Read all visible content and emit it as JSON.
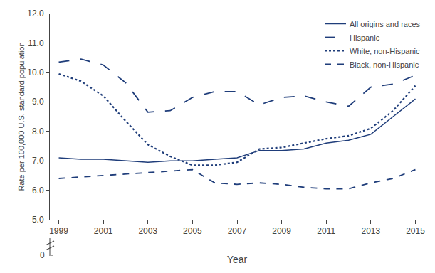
{
  "chart_data": {
    "type": "line",
    "x": [
      1999,
      2000,
      2001,
      2002,
      2003,
      2004,
      2005,
      2006,
      2007,
      2008,
      2009,
      2010,
      2011,
      2012,
      2013,
      2014,
      2015
    ],
    "series": [
      {
        "name": "All origins and races",
        "color": "#1f3d7a",
        "line_style": "solid",
        "values": [
          7.1,
          7.05,
          7.05,
          7.0,
          6.95,
          7.0,
          7.0,
          7.05,
          7.1,
          7.35,
          7.35,
          7.4,
          7.6,
          7.7,
          7.9,
          8.5,
          9.1
        ]
      },
      {
        "name": "Hispanic",
        "color": "#1f3d7a",
        "line_style": "longdash",
        "values": [
          10.35,
          10.45,
          10.25,
          9.65,
          8.65,
          8.7,
          9.15,
          9.35,
          9.35,
          8.9,
          9.15,
          9.2,
          9.0,
          8.85,
          9.5,
          9.6,
          9.9
        ]
      },
      {
        "name": "White, non-Hispanic",
        "color": "#1f3d7a",
        "line_style": "dot",
        "values": [
          9.95,
          9.7,
          9.2,
          8.35,
          7.55,
          7.15,
          6.85,
          6.85,
          6.95,
          7.4,
          7.45,
          7.6,
          7.75,
          7.85,
          8.1,
          8.7,
          9.55
        ]
      },
      {
        "name": "Black, non-Hispanic",
        "color": "#1f3d7a",
        "line_style": "dash",
        "values": [
          6.4,
          6.45,
          6.5,
          6.55,
          6.6,
          6.65,
          6.7,
          6.25,
          6.2,
          6.25,
          6.2,
          6.1,
          6.05,
          6.05,
          6.25,
          6.4,
          6.7
        ]
      }
    ],
    "xlabel": "Year",
    "ylabel": "Rate per 100,000 U.S. standard population",
    "xlim": [
      1998.6,
      2015.4
    ],
    "xticks": [
      1999,
      2001,
      2003,
      2005,
      2007,
      2009,
      2011,
      2013,
      2015
    ],
    "ylim": [
      5.0,
      12.0
    ],
    "yticks": [
      {
        "value": 5.0,
        "label": "5.0"
      },
      {
        "value": 6.0,
        "label": "6.0"
      },
      {
        "value": 7.0,
        "label": "7.0"
      },
      {
        "value": 8.0,
        "label": "8.0"
      },
      {
        "value": 9.0,
        "label": "9.0"
      },
      {
        "value": 10.0,
        "label": "10.0"
      },
      {
        "value": 11.0,
        "label": "11.0"
      },
      {
        "value": 12.0,
        "label": "12.0"
      }
    ],
    "grid": false,
    "legend": "upper right",
    "annotations": [
      {
        "text": "0"
      }
    ]
  }
}
